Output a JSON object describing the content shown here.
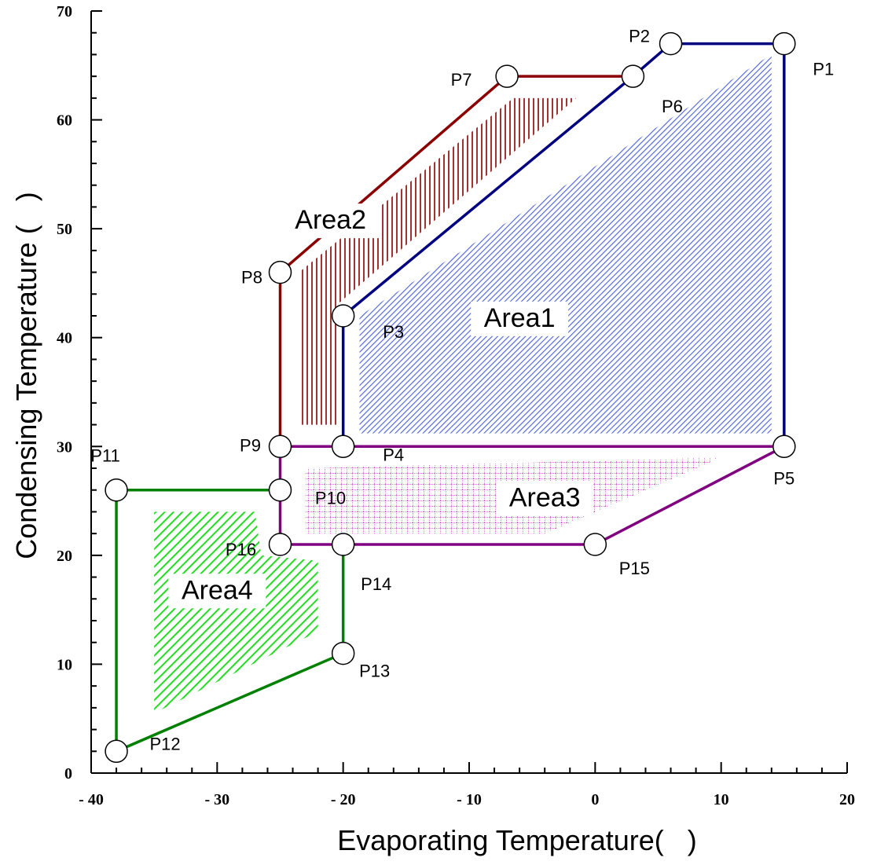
{
  "chart_data": {
    "type": "scatter",
    "title": "",
    "xlabel": "Evaporating Temperature(   )",
    "ylabel": "Condensing Temperature (   )",
    "xlim": [
      -40,
      20
    ],
    "ylim": [
      0,
      70
    ],
    "xticks": [
      -40,
      -30,
      -20,
      -10,
      0,
      10,
      20
    ],
    "yticks": [
      0,
      10,
      20,
      30,
      40,
      50,
      60,
      70
    ],
    "xtick_labels": [
      "- 40",
      "- 30",
      "- 20",
      "- 10",
      "0",
      "10",
      "20"
    ],
    "ytick_labels": [
      "0",
      "10",
      "20",
      "30",
      "40",
      "50",
      "60",
      "70"
    ],
    "grid": false,
    "points": [
      {
        "name": "P1",
        "x": 15,
        "y": 67
      },
      {
        "name": "P2",
        "x": 6,
        "y": 67
      },
      {
        "name": "P3",
        "x": -20,
        "y": 42
      },
      {
        "name": "P4",
        "x": -20,
        "y": 30
      },
      {
        "name": "P5",
        "x": 15,
        "y": 30
      },
      {
        "name": "P6",
        "x": 3,
        "y": 64
      },
      {
        "name": "P7",
        "x": -7,
        "y": 64
      },
      {
        "name": "P8",
        "x": -25,
        "y": 46
      },
      {
        "name": "P9",
        "x": -25,
        "y": 30
      },
      {
        "name": "P10",
        "x": -25,
        "y": 26
      },
      {
        "name": "P11",
        "x": -38,
        "y": 26
      },
      {
        "name": "P12",
        "x": -38,
        "y": 2
      },
      {
        "name": "P13",
        "x": -20,
        "y": 11
      },
      {
        "name": "P14",
        "x": -20,
        "y": 21
      },
      {
        "name": "P15",
        "x": 0,
        "y": 21
      },
      {
        "name": "P16",
        "x": -25,
        "y": 21
      }
    ],
    "series": [
      {
        "name": "Area1",
        "color": "#000080",
        "points": [
          "P1",
          "P2",
          "P6",
          "P3",
          "P4",
          "P5",
          "P1"
        ]
      },
      {
        "name": "Area2",
        "color": "#8b0000",
        "points": [
          "P6",
          "P7",
          "P8",
          "P9"
        ]
      },
      {
        "name": "Area3",
        "color": "#800080",
        "points": [
          "P9",
          "P5",
          "P15",
          "P16",
          "P9"
        ]
      },
      {
        "name": "Area4",
        "color": "#008000",
        "points": [
          "P10",
          "P11",
          "P12",
          "P13",
          "P14"
        ]
      }
    ],
    "regions": [
      {
        "name": "Area1",
        "label": "Area1",
        "label_x": -6,
        "label_y": 41,
        "pattern": "diagonal",
        "color": "#4a5fe0",
        "polygon": [
          [
            -18.7,
            31.2
          ],
          [
            -18.7,
            42
          ],
          [
            14,
            66
          ],
          [
            14,
            31.2
          ]
        ]
      },
      {
        "name": "Area2",
        "label": "Area2",
        "label_x": -21,
        "label_y": 50,
        "pattern": "vertical",
        "color": "#8b0000",
        "polygon": [
          [
            -23.5,
            32
          ],
          [
            -23.5,
            46
          ],
          [
            -6.5,
            62
          ],
          [
            -1.5,
            62
          ],
          [
            -20.5,
            43
          ],
          [
            -20.5,
            32
          ]
        ]
      },
      {
        "name": "Area3",
        "label": "Area3",
        "label_x": -4,
        "label_y": 24.5,
        "pattern": "grid",
        "color": "#b000b0",
        "polygon": [
          [
            -23,
            28
          ],
          [
            10,
            29
          ],
          [
            0,
            24
          ],
          [
            -4,
            22
          ],
          [
            -23,
            22
          ]
        ]
      },
      {
        "name": "Area4",
        "label": "Area4",
        "label_x": -30,
        "label_y": 16,
        "pattern": "diagonal",
        "color": "#22dd22",
        "polygon": [
          [
            -35,
            24
          ],
          [
            -27,
            24
          ],
          [
            -26.5,
            20
          ],
          [
            -22,
            19.5
          ],
          [
            -22,
            14
          ],
          [
            -22,
            13
          ],
          [
            -35,
            5.5
          ]
        ]
      }
    ]
  }
}
